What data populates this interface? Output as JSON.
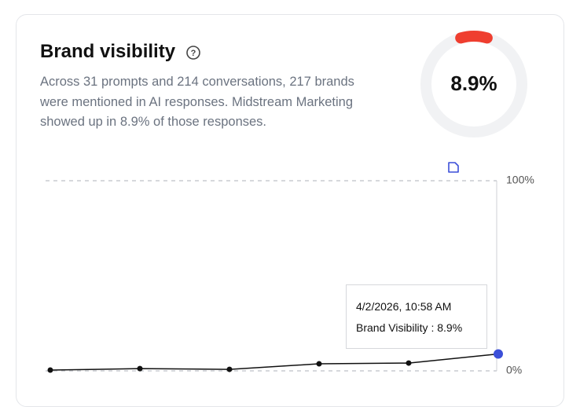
{
  "card": {
    "title": "Brand visibility",
    "description": "Across 31 prompts and 214 conversations, 217 brands were mentioned in AI responses. Midstream Marketing showed up in 8.9% of those responses."
  },
  "gauge": {
    "value": 8.9,
    "label": "8.9%",
    "color": "#ef3e2f",
    "track_color": "#f1f2f4",
    "max": 100
  },
  "chart_data": {
    "type": "line",
    "series": [
      {
        "name": "Brand Visibility",
        "color": "#111111",
        "values": [
          0.4,
          1.2,
          0.8,
          3.7,
          4.1,
          8.9
        ]
      }
    ],
    "ylim": [
      0,
      100
    ],
    "yticks": [
      {
        "value": 0,
        "label": "0%"
      },
      {
        "value": 100,
        "label": "100%"
      }
    ],
    "grid": true,
    "tooltip": {
      "date": "4/2/2026, 10:58 AM",
      "text": "Brand Visibility : 8.9%"
    }
  }
}
